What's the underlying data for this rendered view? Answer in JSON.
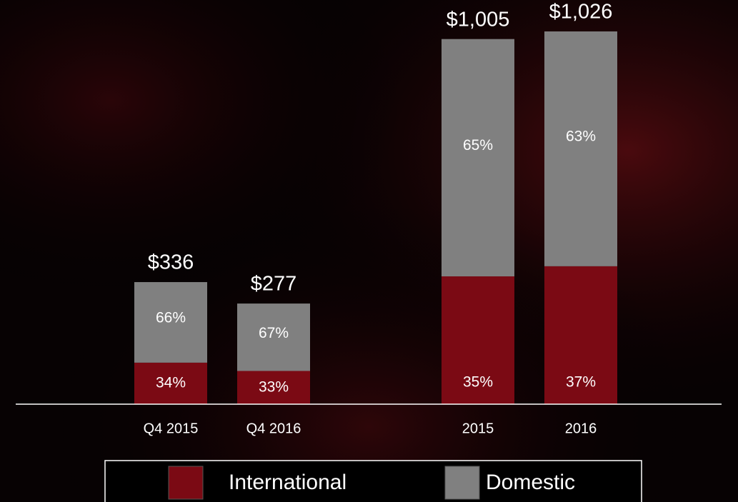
{
  "chart_data": {
    "type": "bar",
    "stacked": true,
    "categories": [
      "Q4 2015",
      "Q4 2016",
      "2015",
      "2016"
    ],
    "totals": {
      "values": [
        336,
        277,
        1005,
        1026
      ],
      "value_labels": [
        "$336",
        "$277",
        "$1,005",
        "$1,026"
      ]
    },
    "series": [
      {
        "name": "International",
        "color": "#7b0a14",
        "values": [
          34,
          33,
          35,
          37
        ],
        "value_labels": [
          "34%",
          "33%",
          "35%",
          "37%"
        ]
      },
      {
        "name": "Domestic",
        "color": "#808080",
        "values": [
          66,
          67,
          65,
          63
        ],
        "value_labels": [
          "66%",
          "67%",
          "65%",
          "63%"
        ]
      }
    ]
  }
}
